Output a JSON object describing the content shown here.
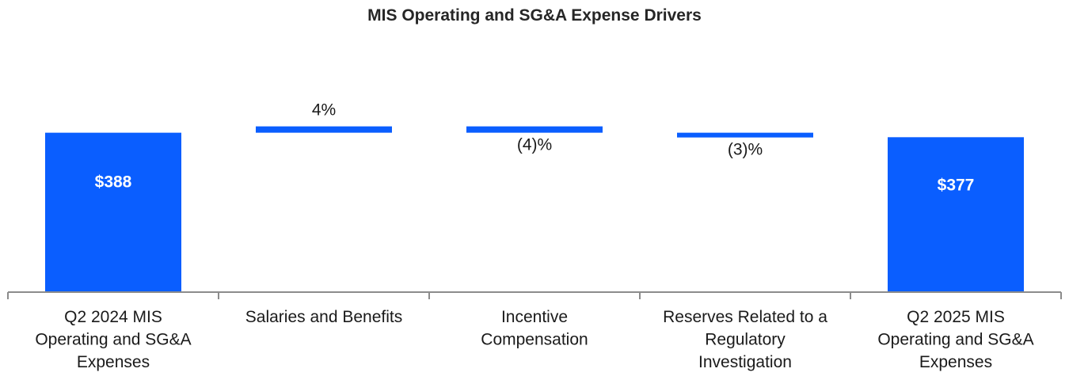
{
  "chart_data": {
    "type": "bar",
    "subtype": "waterfall",
    "title": "MIS Operating and SG&A Expense Drivers",
    "categories": [
      "Q2 2024 MIS Operating and SG&A Expenses",
      "Salaries and Benefits",
      "Incentive Compensation",
      "Reserves Related to a Regulatory Investigation",
      "Q2 2025 MIS Operating and SG&A Expenses"
    ],
    "category_lines": [
      [
        "Q2 2024 MIS",
        "Operating and SG&A",
        "Expenses"
      ],
      [
        "Salaries and Benefits"
      ],
      [
        "Incentive",
        "Compensation"
      ],
      [
        "Reserves Related to a",
        "Regulatory",
        "Investigation"
      ],
      [
        "Q2 2025 MIS",
        "Operating and SG&A",
        "Expenses"
      ]
    ],
    "bars": [
      {
        "kind": "total",
        "value": 388,
        "label": "$388"
      },
      {
        "kind": "change",
        "pct": 4,
        "label": "4%"
      },
      {
        "kind": "change",
        "pct": -4,
        "label": "(4)%"
      },
      {
        "kind": "change",
        "pct": -3,
        "label": "(3)%"
      },
      {
        "kind": "total",
        "value": 377,
        "label": "$377"
      }
    ],
    "xlabel": "",
    "ylabel": "",
    "grid": false,
    "colors": {
      "bar": "#0a5eff",
      "axis": "#8c8c8c",
      "text": "#1a1a1a",
      "title": "#262626"
    }
  }
}
